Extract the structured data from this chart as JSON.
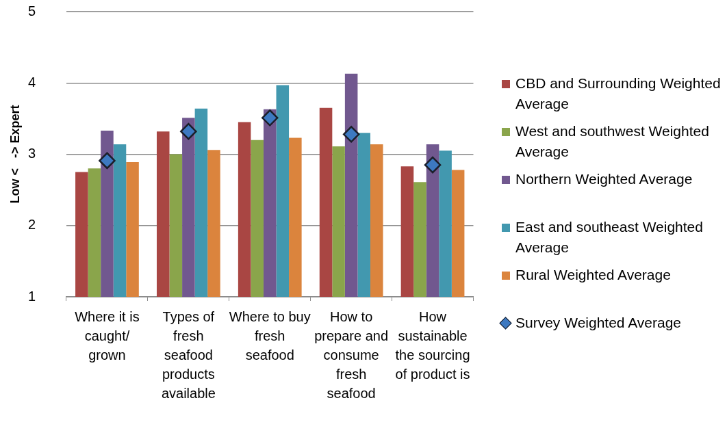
{
  "chart_data": {
    "type": "bar",
    "ylabel": "Low <   -> Expert",
    "categories": [
      "Where it is caught/ grown",
      "Types of fresh seafood products available",
      "Where to buy fresh seafood",
      "How to prepare and consume fresh seafood",
      "How sustainable the sourcing of product is"
    ],
    "series": [
      {
        "name": "CBD and Surrounding Weighted Average",
        "color": "#a94643",
        "values": [
          2.75,
          3.32,
          3.45,
          3.65,
          2.83
        ]
      },
      {
        "name": "West and southwest Weighted Average",
        "color": "#8aa54b",
        "values": [
          2.8,
          3.0,
          3.2,
          3.11,
          2.61
        ]
      },
      {
        "name": "Northern Weighted Average",
        "color": "#71588f",
        "values": [
          3.33,
          3.51,
          3.63,
          4.13,
          3.14
        ]
      },
      {
        "name": "East and southeast Weighted Average",
        "color": "#4298af",
        "values": [
          3.14,
          3.64,
          3.97,
          3.3,
          3.05
        ]
      },
      {
        "name": "Rural Weighted Average",
        "color": "#db843d",
        "values": [
          2.89,
          3.06,
          3.23,
          3.14,
          2.78
        ]
      },
      {
        "name": "Survey Weighted Average",
        "type": "scatter",
        "color": "#3d79c1",
        "marker": "diamond",
        "x": [
          "Where it is caught/ grown",
          "Types of fresh seafood products available",
          "Where to buy fresh seafood",
          "How to prepare and consume fresh seafood",
          "How sustainable the sourcing of product is"
        ],
        "values": [
          2.91,
          3.32,
          3.51,
          3.28,
          2.85
        ]
      }
    ],
    "ylim": [
      1,
      5
    ],
    "yticks": [
      1,
      2,
      3,
      4,
      5
    ],
    "grid": "y",
    "legend": "right"
  }
}
